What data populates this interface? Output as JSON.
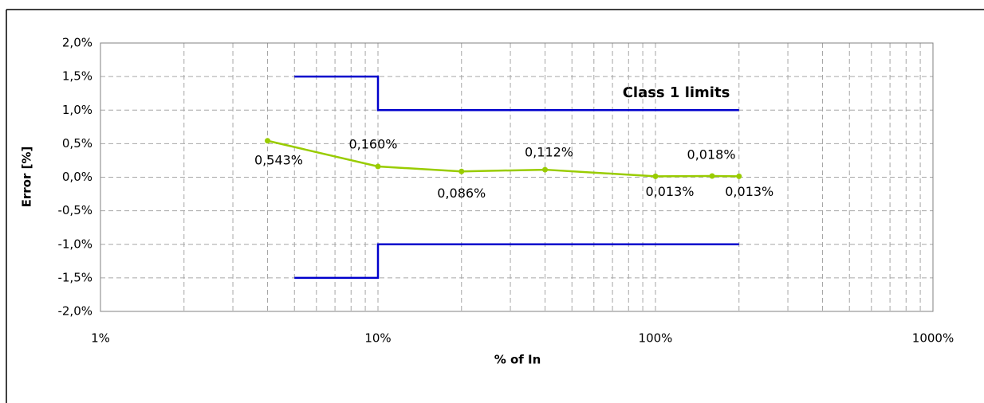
{
  "chart_data": {
    "type": "line",
    "xscale": "log",
    "ylabel": "Error [%]",
    "xlabel": "% of In",
    "annotation": "Class 1 limits",
    "xlim": [
      1,
      1000
    ],
    "xticks": [
      {
        "value": 1,
        "label": "1%"
      },
      {
        "value": 10,
        "label": "10%"
      },
      {
        "value": 100,
        "label": "100%"
      },
      {
        "value": 1000,
        "label": "1000%"
      }
    ],
    "xminorticks": [
      2,
      3,
      4,
      5,
      6,
      7,
      8,
      9,
      20,
      30,
      40,
      50,
      60,
      70,
      80,
      90,
      200,
      300,
      400,
      500,
      600,
      700,
      800,
      900
    ],
    "ylim": [
      -2,
      2
    ],
    "yticks": [
      {
        "value": 2,
        "label": "2,0%"
      },
      {
        "value": 1.5,
        "label": "1,5%"
      },
      {
        "value": 1,
        "label": "1,0%"
      },
      {
        "value": 0.5,
        "label": "0,5%"
      },
      {
        "value": 0,
        "label": "0,0%"
      },
      {
        "value": -0.5,
        "label": "-0,5%"
      },
      {
        "value": -1,
        "label": "-1,0%"
      },
      {
        "value": -1.5,
        "label": "-1,5%"
      },
      {
        "value": -2,
        "label": "-2,0%"
      }
    ],
    "grid": true,
    "series": [
      {
        "color": "#0000cc",
        "x": [
          5,
          10,
          10,
          200
        ],
        "values": [
          1.5,
          1.5,
          1.0,
          1.0
        ]
      },
      {
        "color": "#0000cc",
        "x": [
          5,
          10,
          10,
          200
        ],
        "values": [
          -1.5,
          -1.5,
          -1.0,
          -1.0
        ]
      },
      {
        "color": "#99cc00",
        "markers": true,
        "x": [
          4,
          10,
          20,
          40,
          100,
          160,
          200
        ],
        "values": [
          0.543,
          0.16,
          0.086,
          0.112,
          0.013,
          0.018,
          0.013
        ],
        "value_labels": [
          "0,543%",
          "0,160%",
          "0,086%",
          "0,112%",
          "0,013%",
          "0,018%",
          "0,013%"
        ]
      }
    ]
  }
}
